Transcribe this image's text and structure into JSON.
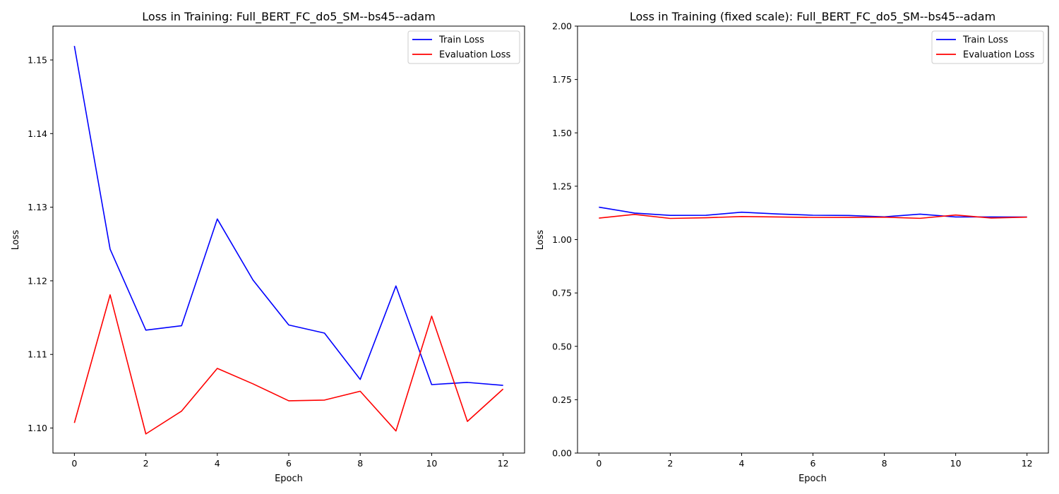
{
  "chart_data": [
    {
      "type": "line",
      "title": "Loss in Training: Full_BERT_FC_do5_SM--bs45--adam",
      "xlabel": "Epoch",
      "ylabel": "Loss",
      "xlim": [
        -0.6,
        12.6
      ],
      "ylim": [
        1.0966,
        1.1546
      ],
      "xticks": [
        0,
        2,
        4,
        6,
        8,
        10,
        12
      ],
      "xtick_labels": [
        "0",
        "2",
        "4",
        "6",
        "8",
        "10",
        "12"
      ],
      "yticks": [
        1.1,
        1.11,
        1.12,
        1.13,
        1.14,
        1.15
      ],
      "ytick_labels": [
        "1.10",
        "1.11",
        "1.12",
        "1.13",
        "1.14",
        "1.15"
      ],
      "legend_position": "top-right",
      "grid": false,
      "x": [
        0,
        1,
        2,
        3,
        4,
        5,
        6,
        7,
        8,
        9,
        10,
        11,
        12
      ],
      "series": [
        {
          "name": "Train Loss",
          "color": "#0000ff",
          "values": [
            1.1519,
            1.1243,
            1.1133,
            1.1139,
            1.1284,
            1.1201,
            1.114,
            1.1129,
            1.1066,
            1.1193,
            1.1059,
            1.1062,
            1.1058
          ]
        },
        {
          "name": "Evaluation Loss",
          "color": "#ff0000",
          "values": [
            1.1007,
            1.1181,
            1.0992,
            1.1023,
            1.1081,
            1.106,
            1.1037,
            1.1038,
            1.105,
            1.0996,
            1.1152,
            1.1009,
            1.1053
          ]
        }
      ]
    },
    {
      "type": "line",
      "title": "Loss in Training (fixed scale): Full_BERT_FC_do5_SM--bs45--adam",
      "xlabel": "Epoch",
      "ylabel": "Loss",
      "xlim": [
        -0.6,
        12.6
      ],
      "ylim": [
        0.0,
        2.0
      ],
      "xticks": [
        0,
        2,
        4,
        6,
        8,
        10,
        12
      ],
      "xtick_labels": [
        "0",
        "2",
        "4",
        "6",
        "8",
        "10",
        "12"
      ],
      "yticks": [
        0.0,
        0.25,
        0.5,
        0.75,
        1.0,
        1.25,
        1.5,
        1.75,
        2.0
      ],
      "ytick_labels": [
        "0.00",
        "0.25",
        "0.50",
        "0.75",
        "1.00",
        "1.25",
        "1.50",
        "1.75",
        "2.00"
      ],
      "legend_position": "top-right",
      "grid": false,
      "x": [
        0,
        1,
        2,
        3,
        4,
        5,
        6,
        7,
        8,
        9,
        10,
        11,
        12
      ],
      "series": [
        {
          "name": "Train Loss",
          "color": "#0000ff",
          "values": [
            1.1519,
            1.1243,
            1.1133,
            1.1139,
            1.1284,
            1.1201,
            1.114,
            1.1129,
            1.1066,
            1.1193,
            1.1059,
            1.1062,
            1.1058
          ]
        },
        {
          "name": "Evaluation Loss",
          "color": "#ff0000",
          "values": [
            1.1007,
            1.1181,
            1.0992,
            1.1023,
            1.1081,
            1.106,
            1.1037,
            1.1038,
            1.105,
            1.0996,
            1.1152,
            1.1009,
            1.1053
          ]
        }
      ]
    }
  ]
}
